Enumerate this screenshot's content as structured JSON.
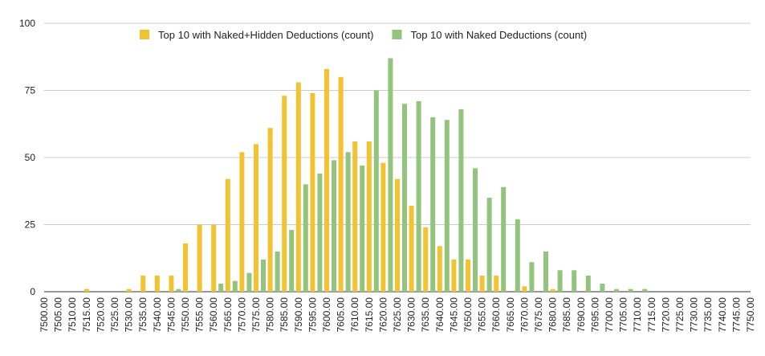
{
  "chart_data": {
    "type": "bar",
    "categories": [
      "7500.00",
      "7505.00",
      "7510.00",
      "7515.00",
      "7520.00",
      "7525.00",
      "7530.00",
      "7535.00",
      "7540.00",
      "7545.00",
      "7550.00",
      "7555.00",
      "7560.00",
      "7565.00",
      "7570.00",
      "7575.00",
      "7580.00",
      "7585.00",
      "7590.00",
      "7595.00",
      "7600.00",
      "7605.00",
      "7610.00",
      "7615.00",
      "7620.00",
      "7625.00",
      "7630.00",
      "7635.00",
      "7640.00",
      "7645.00",
      "7650.00",
      "7655.00",
      "7660.00",
      "7665.00",
      "7670.00",
      "7675.00",
      "7680.00",
      "7685.00",
      "7690.00",
      "7695.00",
      "7700.00",
      "7705.00",
      "7710.00",
      "7715.00",
      "7720.00",
      "7725.00",
      "7730.00",
      "7735.00",
      "7740.00",
      "7745.00",
      "7750.00"
    ],
    "series": [
      {
        "name": "Top 10 with Naked+Hidden Deductions (count)",
        "color": "#f1c232",
        "values": [
          0,
          0,
          0,
          1,
          0,
          0,
          1,
          6,
          6,
          6,
          18,
          25,
          25,
          42,
          52,
          55,
          61,
          73,
          78,
          74,
          83,
          80,
          56,
          56,
          48,
          42,
          32,
          24,
          17,
          12,
          12,
          6,
          6,
          0,
          2,
          0,
          1,
          0,
          0,
          0,
          0,
          0,
          0,
          0,
          0,
          0,
          0,
          0,
          0,
          0,
          0
        ]
      },
      {
        "name": "Top 10 with Naked Deductions (count)",
        "color": "#93c47d",
        "values": [
          0,
          0,
          0,
          0,
          0,
          0,
          0,
          0,
          0,
          1,
          0,
          0,
          3,
          4,
          7,
          12,
          15,
          23,
          40,
          44,
          49,
          52,
          47,
          75,
          87,
          70,
          71,
          65,
          64,
          68,
          46,
          35,
          39,
          27,
          11,
          15,
          8,
          8,
          6,
          3,
          1,
          1,
          1,
          0,
          0,
          0,
          0,
          0,
          0,
          0,
          0
        ]
      }
    ],
    "ylim": [
      0,
      100
    ],
    "yticks": [
      0,
      25,
      50,
      75,
      100
    ],
    "grid": true,
    "legend": "top"
  }
}
